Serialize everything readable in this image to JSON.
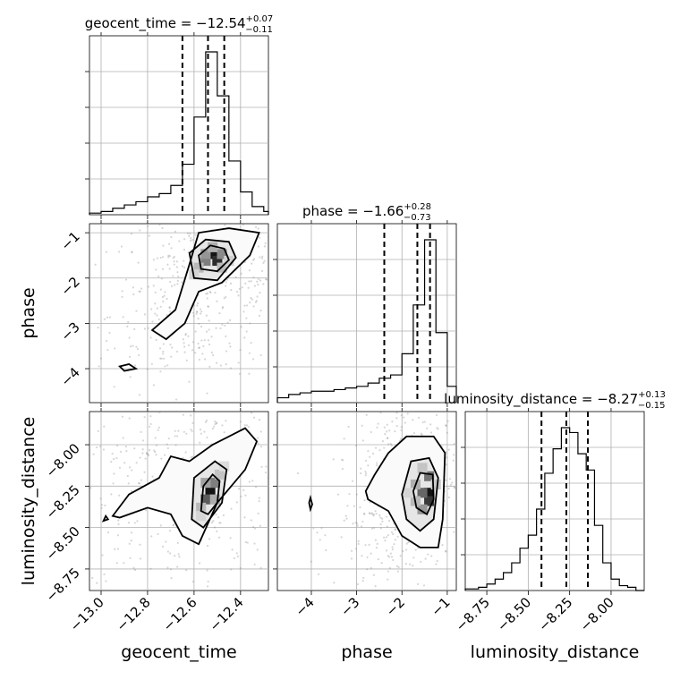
{
  "chart_data": {
    "type": "corner",
    "parameters": [
      "geocent_time",
      "phase",
      "luminosity_distance"
    ],
    "titles": [
      {
        "param": "geocent_time",
        "text": "geocent_time = −12.54",
        "upper": "+0.07",
        "lower": "−0.11"
      },
      {
        "param": "phase",
        "text": "phase = −1.66",
        "upper": "+0.28",
        "lower": "−0.73"
      },
      {
        "param": "luminosity_distance",
        "text": "luminosity_distance = −8.27",
        "upper": "+0.13",
        "lower": "−0.15"
      }
    ],
    "axis_ranges": {
      "geocent_time": [
        -13.05,
        -12.28
      ],
      "phase": [
        -4.75,
        -0.8
      ],
      "luminosity_distance": [
        -8.88,
        -7.8
      ]
    },
    "ticks": {
      "geocent_time": [
        -13.0,
        -12.8,
        -12.6,
        -12.4
      ],
      "phase": [
        -4,
        -3,
        -2,
        -1
      ],
      "luminosity_distance": [
        -8.75,
        -8.5,
        -8.25,
        -8.0
      ]
    },
    "tick_labels": {
      "geocent_time": [
        "−13.0",
        "−12.8",
        "−12.6",
        "−12.4"
      ],
      "phase": [
        "−4",
        "−3",
        "−2",
        "−1"
      ],
      "luminosity_distance": [
        "−8.75",
        "−8.50",
        "−8.25",
        "−8.00"
      ]
    },
    "quantiles": {
      "geocent_time": [
        -12.65,
        -12.54,
        -12.47
      ],
      "phase": [
        -2.39,
        -1.66,
        -1.38
      ],
      "luminosity_distance": [
        -8.42,
        -8.27,
        -8.14
      ]
    },
    "histograms": {
      "geocent_time": {
        "edges": [
          -13.05,
          -13.0,
          -12.95,
          -12.9,
          -12.85,
          -12.8,
          -12.75,
          -12.7,
          -12.65,
          -12.6,
          -12.55,
          -12.5,
          -12.45,
          -12.4,
          -12.35,
          -12.3,
          -12.28
        ],
        "counts": [
          0.01,
          0.02,
          0.04,
          0.06,
          0.08,
          0.11,
          0.13,
          0.18,
          0.31,
          0.6,
          1.0,
          0.73,
          0.33,
          0.14,
          0.05,
          0.02
        ]
      },
      "phase": {
        "edges": [
          -4.75,
          -4.5,
          -4.25,
          -4.0,
          -3.75,
          -3.5,
          -3.25,
          -3.0,
          -2.75,
          -2.5,
          -2.25,
          -2.0,
          -1.75,
          -1.5,
          -1.25,
          -1.0,
          -0.8
        ],
        "counts": [
          0.03,
          0.05,
          0.06,
          0.07,
          0.07,
          0.08,
          0.09,
          0.1,
          0.12,
          0.15,
          0.17,
          0.3,
          0.6,
          1.0,
          0.43,
          0.1
        ]
      },
      "luminosity_distance": {
        "edges": [
          -8.88,
          -8.8,
          -8.75,
          -8.7,
          -8.65,
          -8.6,
          -8.55,
          -8.5,
          -8.45,
          -8.4,
          -8.35,
          -8.3,
          -8.25,
          -8.2,
          -8.15,
          -8.1,
          -8.05,
          -8.0,
          -7.95,
          -7.9,
          -7.85,
          -7.8
        ],
        "counts": [
          0.01,
          0.02,
          0.04,
          0.07,
          0.11,
          0.17,
          0.26,
          0.34,
          0.5,
          0.72,
          0.87,
          1.0,
          0.97,
          0.84,
          0.74,
          0.4,
          0.17,
          0.07,
          0.03,
          0.02,
          0.0
        ]
      }
    },
    "pairs": [
      {
        "x": "geocent_time",
        "y": "phase",
        "peak": [
          -12.52,
          -1.47
        ],
        "density_cells": [
          {
            "x": -12.52,
            "y": -1.47,
            "w": 1.0
          },
          {
            "x": -12.5,
            "y": -1.62,
            "w": 0.9
          },
          {
            "x": -12.55,
            "y": -1.62,
            "w": 0.55
          },
          {
            "x": -12.48,
            "y": -1.47,
            "w": 0.5
          },
          {
            "x": -12.55,
            "y": -1.47,
            "w": 0.45
          },
          {
            "x": -12.52,
            "y": -1.32,
            "w": 0.35
          },
          {
            "x": -12.58,
            "y": -1.77,
            "w": 0.3
          },
          {
            "x": -12.48,
            "y": -1.77,
            "w": 0.3
          },
          {
            "x": -12.6,
            "y": -1.92,
            "w": 0.18
          },
          {
            "x": -12.45,
            "y": -1.62,
            "w": 0.2
          }
        ],
        "contours": [
          [
            [
              -12.58,
              -1.5
            ],
            [
              -12.53,
              -1.28
            ],
            [
              -12.47,
              -1.35
            ],
            [
              -12.45,
              -1.6
            ],
            [
              -12.5,
              -1.85
            ],
            [
              -12.57,
              -1.8
            ]
          ],
          [
            [
              -12.62,
              -1.45
            ],
            [
              -12.55,
              -1.15
            ],
            [
              -12.45,
              -1.2
            ],
            [
              -12.42,
              -1.55
            ],
            [
              -12.5,
              -2.05
            ],
            [
              -12.6,
              -2.0
            ]
          ],
          [
            [
              -12.78,
              -3.15
            ],
            [
              -12.68,
              -2.7
            ],
            [
              -12.62,
              -1.7
            ],
            [
              -12.58,
              -1.0
            ],
            [
              -12.45,
              -0.9
            ],
            [
              -12.32,
              -1.0
            ],
            [
              -12.36,
              -1.5
            ],
            [
              -12.48,
              -2.1
            ],
            [
              -12.58,
              -2.3
            ],
            [
              -12.64,
              -3.0
            ],
            [
              -12.72,
              -3.35
            ]
          ],
          [
            [
              -12.92,
              -3.95
            ],
            [
              -12.88,
              -3.9
            ],
            [
              -12.85,
              -4.0
            ],
            [
              -12.9,
              -4.05
            ]
          ]
        ]
      },
      {
        "x": "geocent_time",
        "y": "luminosity_distance",
        "peak": [
          -12.53,
          -8.28
        ],
        "density_cells": [
          {
            "x": -12.53,
            "y": -8.28,
            "w": 1.0
          },
          {
            "x": -12.55,
            "y": -8.33,
            "w": 0.7
          },
          {
            "x": -12.51,
            "y": -8.23,
            "w": 0.55
          },
          {
            "x": -12.55,
            "y": -8.23,
            "w": 0.4
          },
          {
            "x": -12.51,
            "y": -8.33,
            "w": 0.35
          },
          {
            "x": -12.57,
            "y": -8.38,
            "w": 0.3
          },
          {
            "x": -12.49,
            "y": -8.18,
            "w": 0.25
          },
          {
            "x": -12.57,
            "y": -8.43,
            "w": 0.18
          },
          {
            "x": -12.47,
            "y": -8.13,
            "w": 0.15
          }
        ],
        "contours": [
          [
            [
              -12.57,
              -8.4
            ],
            [
              -12.56,
              -8.25
            ],
            [
              -12.52,
              -8.18
            ],
            [
              -12.49,
              -8.22
            ],
            [
              -12.5,
              -8.35
            ],
            [
              -12.54,
              -8.42
            ]
          ],
          [
            [
              -12.61,
              -8.45
            ],
            [
              -12.6,
              -8.2
            ],
            [
              -12.51,
              -8.1
            ],
            [
              -12.46,
              -8.15
            ],
            [
              -12.48,
              -8.35
            ],
            [
              -12.56,
              -8.5
            ]
          ],
          [
            [
              -12.95,
              -8.43
            ],
            [
              -12.88,
              -8.3
            ],
            [
              -12.75,
              -8.2
            ],
            [
              -12.7,
              -8.07
            ],
            [
              -12.62,
              -8.1
            ],
            [
              -12.52,
              -8.0
            ],
            [
              -12.38,
              -7.9
            ],
            [
              -12.33,
              -7.98
            ],
            [
              -12.38,
              -8.15
            ],
            [
              -12.5,
              -8.35
            ],
            [
              -12.58,
              -8.6
            ],
            [
              -12.65,
              -8.55
            ],
            [
              -12.7,
              -8.42
            ],
            [
              -12.8,
              -8.38
            ],
            [
              -12.92,
              -8.44
            ]
          ],
          [
            [
              -12.99,
              -8.46
            ],
            [
              -12.98,
              -8.43
            ],
            [
              -12.97,
              -8.45
            ]
          ]
        ]
      },
      {
        "x": "phase",
        "y": "luminosity_distance",
        "peak": [
          -1.4,
          -8.29
        ],
        "density_cells": [
          {
            "x": -1.4,
            "y": -8.29,
            "w": 1.0
          },
          {
            "x": -1.4,
            "y": -8.34,
            "w": 0.85
          },
          {
            "x": -1.55,
            "y": -8.29,
            "w": 0.65
          },
          {
            "x": -1.4,
            "y": -8.19,
            "w": 0.6
          },
          {
            "x": -1.55,
            "y": -8.39,
            "w": 0.45
          },
          {
            "x": -1.7,
            "y": -8.24,
            "w": 0.35
          },
          {
            "x": -1.7,
            "y": -8.34,
            "w": 0.3
          },
          {
            "x": -1.55,
            "y": -8.14,
            "w": 0.25
          },
          {
            "x": -1.85,
            "y": -8.29,
            "w": 0.18
          },
          {
            "x": -1.25,
            "y": -8.24,
            "w": 0.22
          }
        ],
        "contours": [
          [
            [
              -1.75,
              -8.28
            ],
            [
              -1.6,
              -8.17
            ],
            [
              -1.32,
              -8.18
            ],
            [
              -1.3,
              -8.33
            ],
            [
              -1.45,
              -8.42
            ],
            [
              -1.68,
              -8.38
            ]
          ],
          [
            [
              -2.0,
              -8.3
            ],
            [
              -1.8,
              -8.1
            ],
            [
              -1.4,
              -8.08
            ],
            [
              -1.2,
              -8.2
            ],
            [
              -1.3,
              -8.45
            ],
            [
              -1.6,
              -8.52
            ],
            [
              -1.9,
              -8.45
            ]
          ],
          [
            [
              -2.8,
              -8.28
            ],
            [
              -2.6,
              -8.18
            ],
            [
              -2.3,
              -8.05
            ],
            [
              -1.9,
              -7.95
            ],
            [
              -1.3,
              -7.95
            ],
            [
              -1.05,
              -8.05
            ],
            [
              -1.1,
              -8.45
            ],
            [
              -1.2,
              -8.62
            ],
            [
              -1.6,
              -8.62
            ],
            [
              -2.0,
              -8.55
            ],
            [
              -2.3,
              -8.4
            ],
            [
              -2.75,
              -8.33
            ]
          ],
          [
            [
              -4.05,
              -8.35
            ],
            [
              -4.02,
              -8.32
            ],
            [
              -3.98,
              -8.36
            ],
            [
              -4.02,
              -8.39
            ]
          ]
        ]
      }
    ],
    "xlabels": [
      "geocent_time",
      "phase",
      "luminosity_distance"
    ],
    "ylabels": [
      "phase",
      "luminosity_distance"
    ],
    "grid": true,
    "colors": {
      "density": "#000000",
      "scatter": "#8a8a8a",
      "lines": "#000000"
    }
  }
}
